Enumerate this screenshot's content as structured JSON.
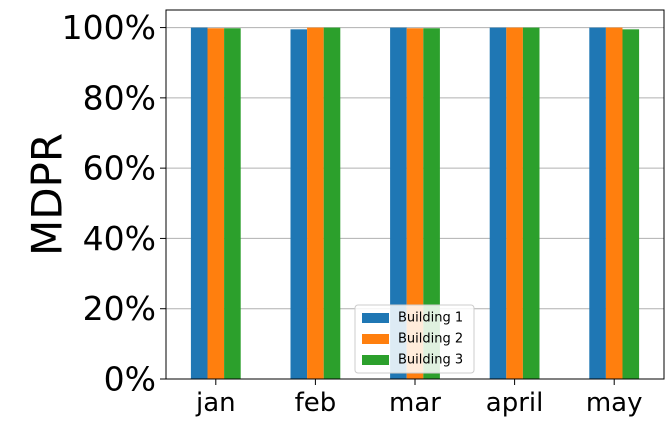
{
  "chart_data": {
    "type": "bar",
    "title": "",
    "xlabel": "",
    "ylabel": "MDPR",
    "categories": [
      "jan",
      "feb",
      "mar",
      "april",
      "may"
    ],
    "series": [
      {
        "name": "Building 1",
        "color": "#1f77b4",
        "values": [
          1.0,
          0.995,
          1.0,
          1.0,
          1.0
        ]
      },
      {
        "name": "Building 2",
        "color": "#ff7f0e",
        "values": [
          0.998,
          1.0,
          0.998,
          1.0,
          1.0
        ]
      },
      {
        "name": "Building 3",
        "color": "#2ca02c",
        "values": [
          0.998,
          1.0,
          0.998,
          1.0,
          0.995
        ]
      }
    ],
    "ylim": [
      0,
      1.05
    ],
    "yticks": [
      {
        "value": 0.0,
        "label": "0%"
      },
      {
        "value": 0.2,
        "label": "20%"
      },
      {
        "value": 0.4,
        "label": "40%"
      },
      {
        "value": 0.6,
        "label": "60%"
      },
      {
        "value": 0.8,
        "label": "80%"
      },
      {
        "value": 1.0,
        "label": "100%"
      }
    ],
    "grid": "horizontal",
    "legend_position": "bottom-center"
  }
}
